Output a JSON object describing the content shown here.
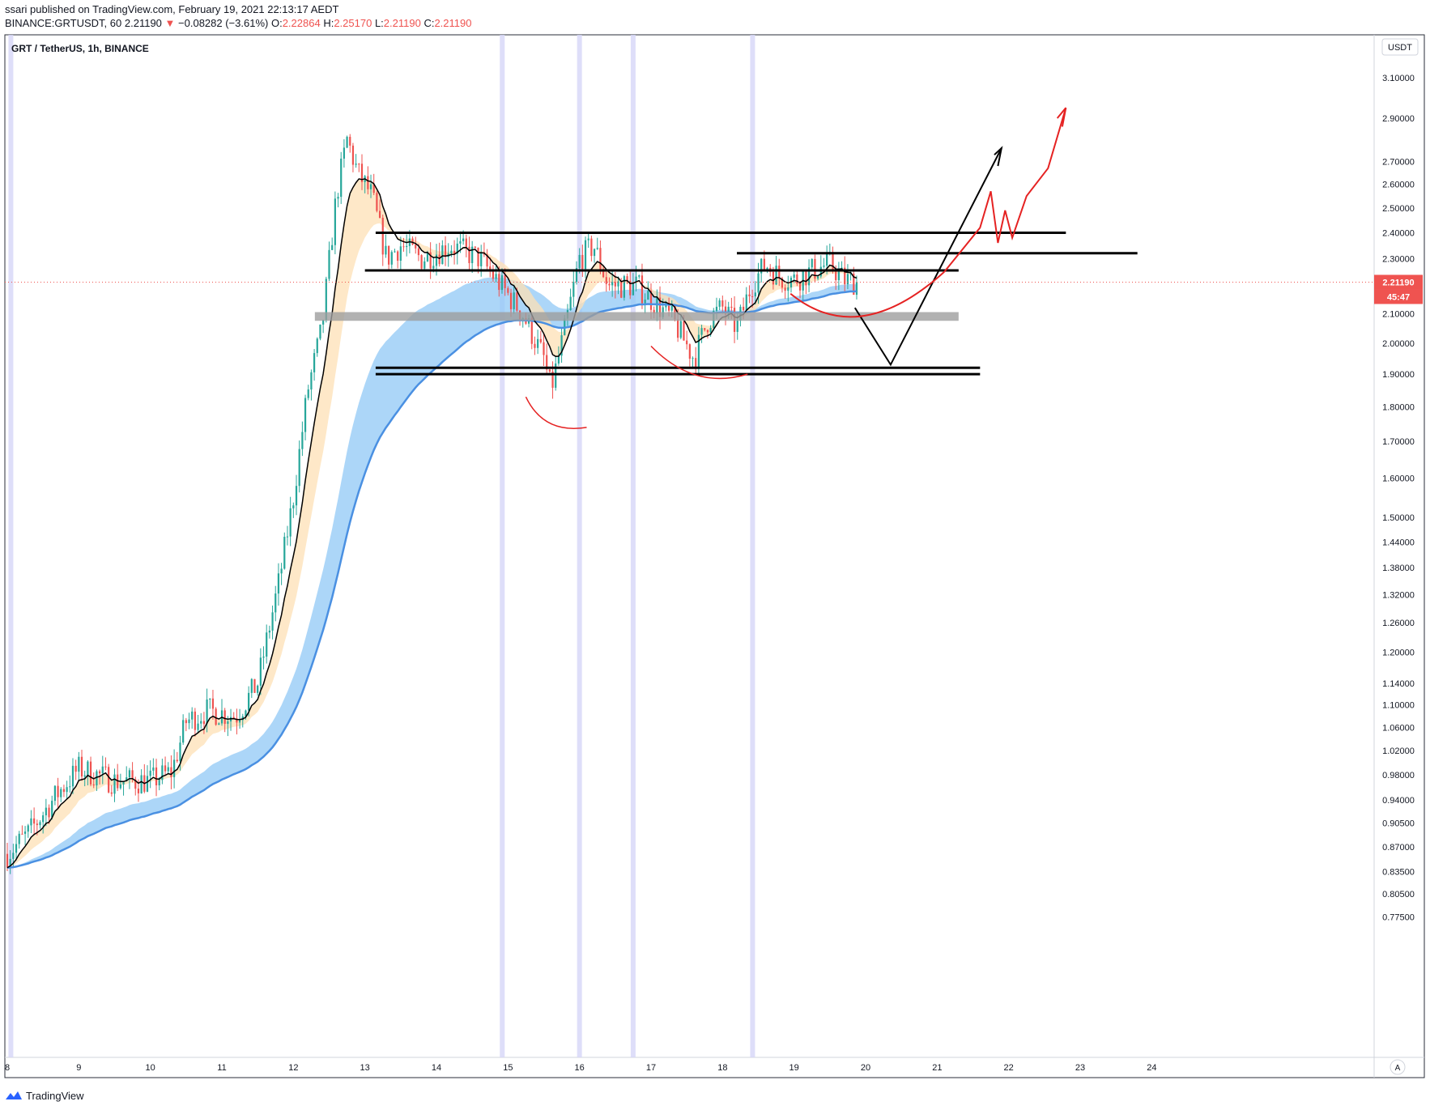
{
  "header": {
    "publisher_line": "ssari published on TradingView.com, February 19, 2021 22:13:17 AEDT",
    "symbol": "BINANCE:GRTUSDT, 60",
    "last": "2.21190",
    "change": "−0.08282 (−3.61%)",
    "o_label": "O:",
    "o_value": "2.22864",
    "h_label": "H:",
    "h_value": "2.25170",
    "l_label": "L:",
    "l_value": "2.21190",
    "c_label": "C:",
    "c_value": "2.21190"
  },
  "chart_title": "GRT / TetherUS, 1h, BINANCE",
  "currency_badge": "USDT",
  "price_label": "2.21190",
  "countdown_label": "45:47",
  "auto_scale_label": "A",
  "footer_brand": "TradingView",
  "colors": {
    "up": "#26a69a",
    "down": "#ef5350",
    "fast_ma": "#000000",
    "slow_ma": "#4a90e2",
    "slow_band": "#90c8f5",
    "fast_band": "#fde0b6",
    "session": "#d6d6f7",
    "annotation_red": "#e52222",
    "zone_gray": "#9e9e9e"
  },
  "chart_data": {
    "type": "candlestick",
    "title": "GRT / TetherUS, 1h, BINANCE",
    "y_scale": "log",
    "ylim": [
      0.735,
      3.35
    ],
    "xlim": [
      8,
      25.5
    ],
    "y_ticks": [
      "3.10000",
      "2.90000",
      "2.70000",
      "2.60000",
      "2.50000",
      "2.40000",
      "2.30000",
      "2.10000",
      "2.00000",
      "1.90000",
      "1.80000",
      "1.70000",
      "1.60000",
      "1.50000",
      "1.44000",
      "1.38000",
      "1.32000",
      "1.26000",
      "1.20000",
      "1.14000",
      "1.10000",
      "1.06000",
      "1.02000",
      "0.98000",
      "0.94000",
      "0.90500",
      "0.87000",
      "0.83500",
      "0.80500",
      "0.77500"
    ],
    "x_ticks": [
      "8",
      "9",
      "10",
      "11",
      "12",
      "13",
      "14",
      "15",
      "16",
      "17",
      "18",
      "19",
      "20",
      "21",
      "22",
      "23",
      "24"
    ],
    "x_tick_days": [
      8,
      9,
      10,
      11,
      12,
      13,
      14,
      15,
      16,
      17,
      18,
      19,
      20,
      21,
      22,
      23,
      24
    ],
    "session_lines": [
      8.05,
      14.92,
      16.0,
      16.75,
      18.42
    ],
    "anchors": [
      [
        8.0,
        0.86
      ],
      [
        8.3,
        0.89
      ],
      [
        8.7,
        0.95
      ],
      [
        9.0,
        0.99
      ],
      [
        9.5,
        0.97
      ],
      [
        10.0,
        0.97
      ],
      [
        10.3,
        0.985
      ],
      [
        10.5,
        1.07
      ],
      [
        10.8,
        1.09
      ],
      [
        11.2,
        1.08
      ],
      [
        11.5,
        1.14
      ],
      [
        11.8,
        1.35
      ],
      [
        12.0,
        1.55
      ],
      [
        12.2,
        1.85
      ],
      [
        12.4,
        2.05
      ],
      [
        12.6,
        2.55
      ],
      [
        12.75,
        2.8
      ],
      [
        12.9,
        2.65
      ],
      [
        13.1,
        2.55
      ],
      [
        13.3,
        2.3
      ],
      [
        13.5,
        2.35
      ],
      [
        13.8,
        2.3
      ],
      [
        14.2,
        2.35
      ],
      [
        14.6,
        2.3
      ],
      [
        14.9,
        2.2
      ],
      [
        15.2,
        2.1
      ],
      [
        15.5,
        1.95
      ],
      [
        15.6,
        1.85
      ],
      [
        15.8,
        2.05
      ],
      [
        16.0,
        2.3
      ],
      [
        16.2,
        2.35
      ],
      [
        16.4,
        2.2
      ],
      [
        16.8,
        2.2
      ],
      [
        17.0,
        2.15
      ],
      [
        17.3,
        2.08
      ],
      [
        17.6,
        1.95
      ],
      [
        17.8,
        2.08
      ],
      [
        18.0,
        2.12
      ],
      [
        18.2,
        2.05
      ],
      [
        18.4,
        2.2
      ],
      [
        18.6,
        2.28
      ],
      [
        18.8,
        2.23
      ],
      [
        19.0,
        2.22
      ],
      [
        19.3,
        2.26
      ],
      [
        19.5,
        2.28
      ],
      [
        19.7,
        2.22
      ],
      [
        19.9,
        2.2119
      ]
    ],
    "levels": [
      {
        "price": 2.4,
        "from": 13.15,
        "to": 22.8
      },
      {
        "price": 2.32,
        "from": 18.2,
        "to": 23.8
      },
      {
        "price": 2.255,
        "from": 13.0,
        "to": 21.3
      },
      {
        "price": 1.92,
        "from": 13.15,
        "to": 21.6
      },
      {
        "price": 1.9,
        "from": 13.15,
        "to": 21.6
      }
    ],
    "zone": {
      "low": 2.075,
      "high": 2.105,
      "from": 12.3,
      "to": 21.3
    },
    "last_price": 2.2119
  }
}
